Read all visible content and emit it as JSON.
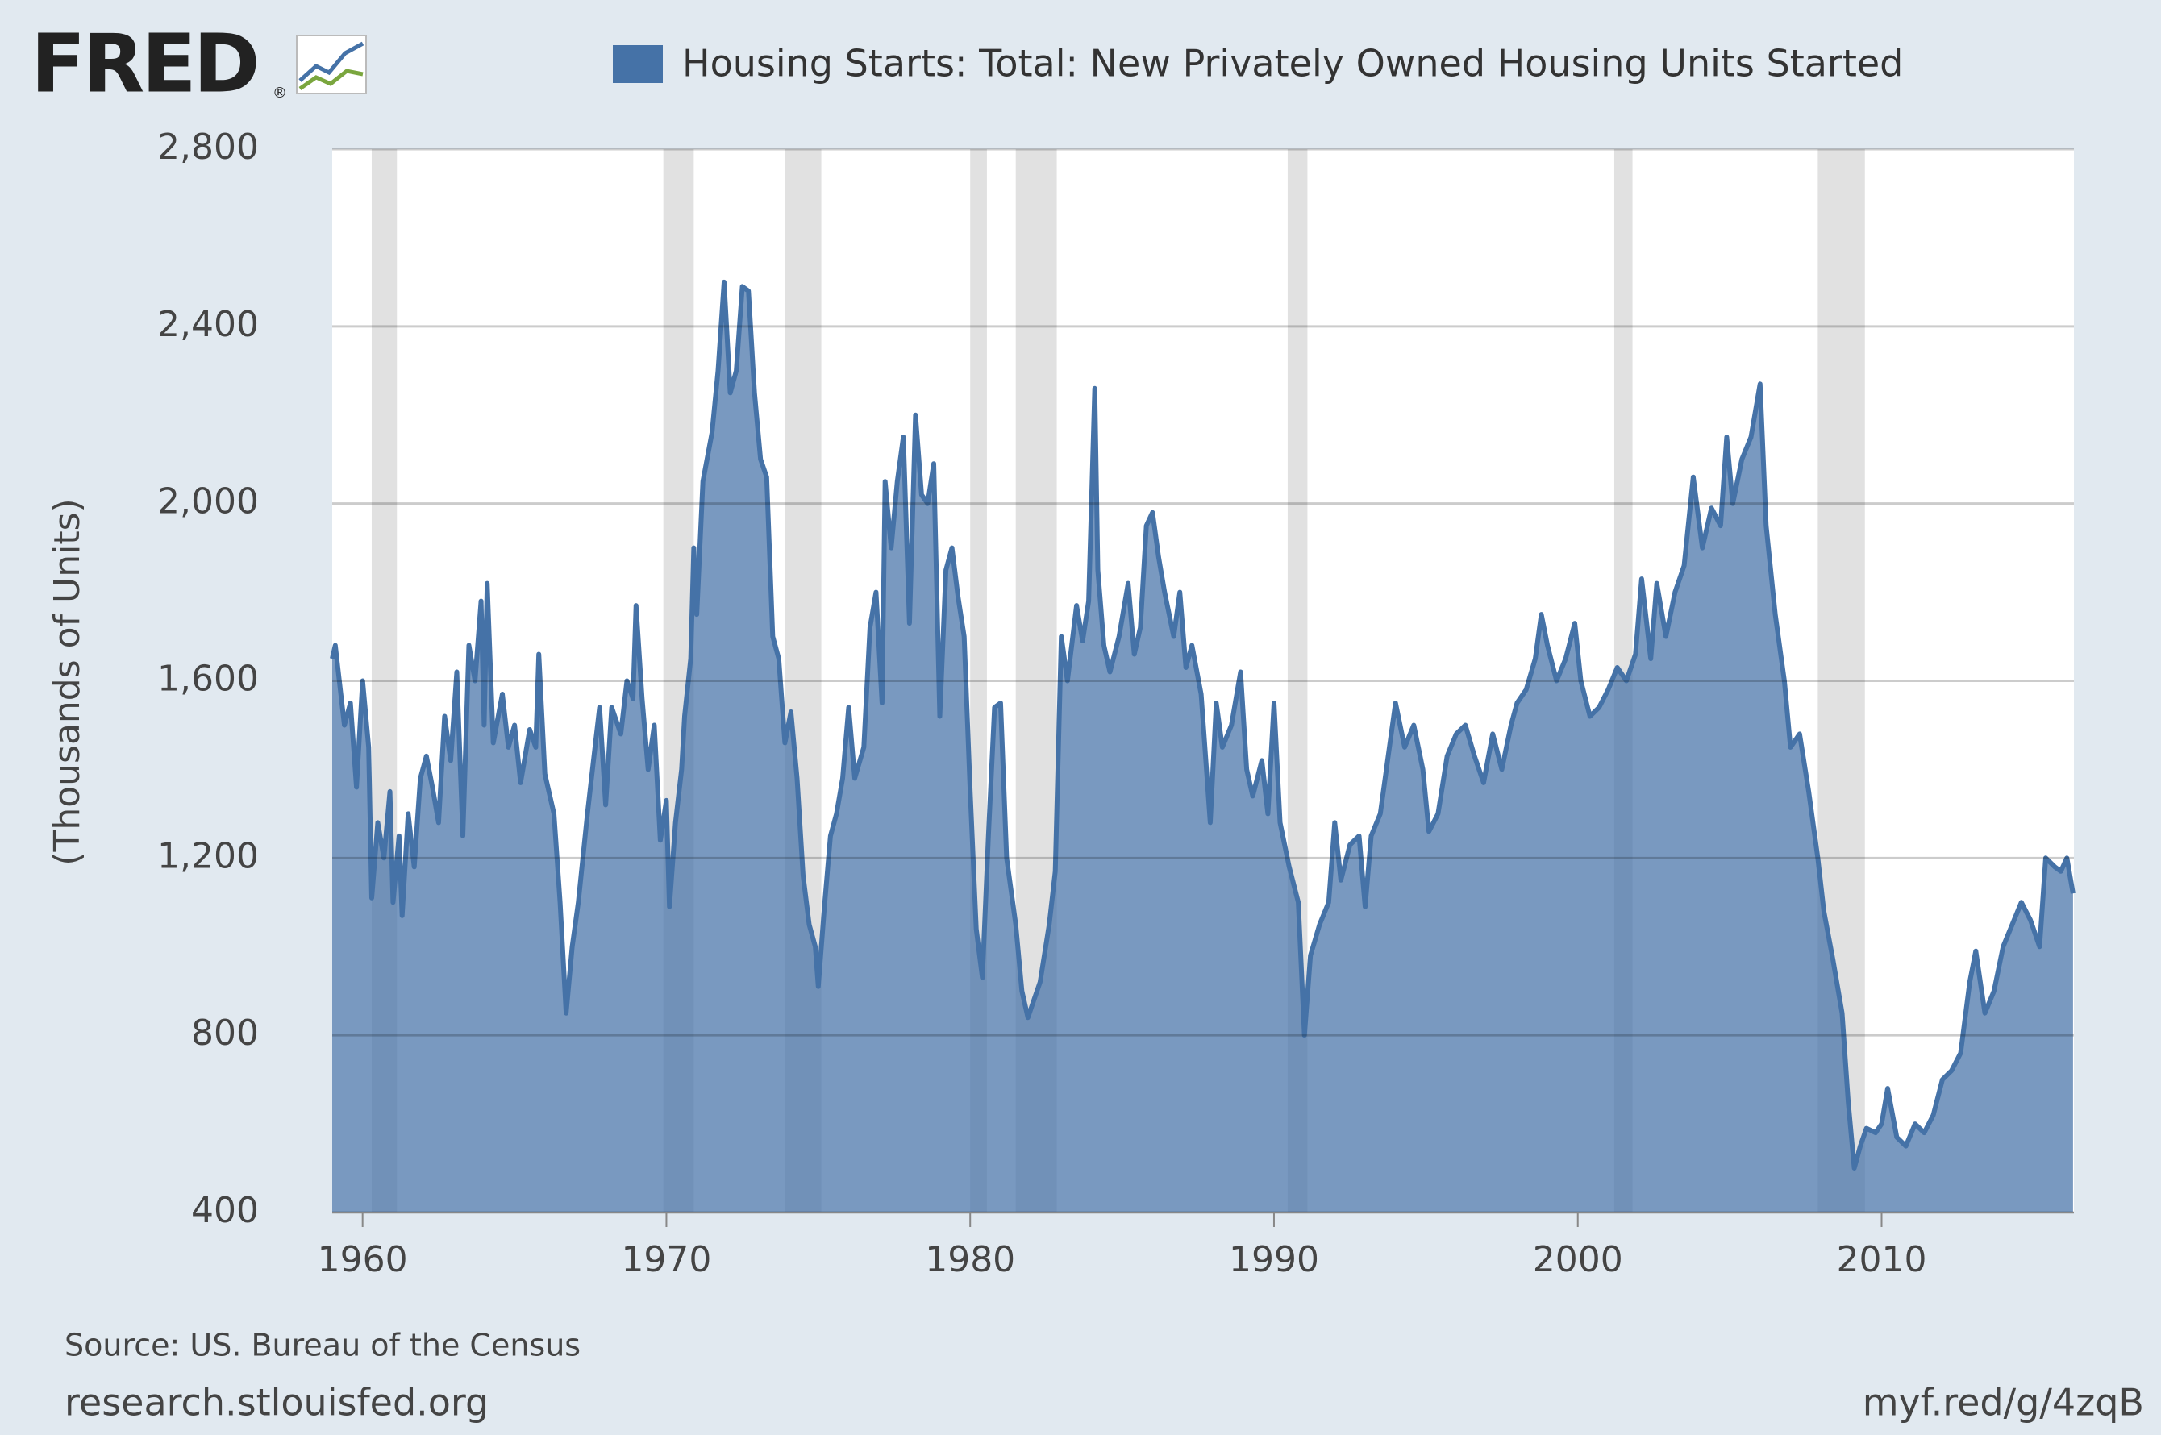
{
  "logo": "FRED",
  "logo_mark": "®",
  "chart_data": {
    "type": "area",
    "series": [
      {
        "name": "Housing Starts: Total: New Privately Owned Housing Units Started",
        "color": "#4572a7",
        "x": [
          1959.0,
          1959.1,
          1959.4,
          1959.6,
          1959.8,
          1960.0,
          1960.2,
          1960.3,
          1960.5,
          1960.7,
          1960.9,
          1961.0,
          1961.2,
          1961.3,
          1961.5,
          1961.7,
          1961.9,
          1962.1,
          1962.3,
          1962.5,
          1962.7,
          1962.9,
          1963.1,
          1963.3,
          1963.5,
          1963.7,
          1963.9,
          1964.0,
          1964.1,
          1964.3,
          1964.6,
          1964.8,
          1965.0,
          1965.2,
          1965.5,
          1965.7,
          1965.8,
          1966.0,
          1966.3,
          1966.5,
          1966.7,
          1966.9,
          1967.1,
          1967.4,
          1967.6,
          1967.8,
          1968.0,
          1968.2,
          1968.5,
          1968.7,
          1968.9,
          1969.0,
          1969.2,
          1969.4,
          1969.6,
          1969.8,
          1970.0,
          1970.1,
          1970.3,
          1970.5,
          1970.6,
          1970.8,
          1970.9,
          1971.0,
          1971.2,
          1971.5,
          1971.7,
          1971.9,
          1972.1,
          1972.3,
          1972.5,
          1972.7,
          1972.9,
          1973.1,
          1973.3,
          1973.5,
          1973.7,
          1973.9,
          1974.1,
          1974.3,
          1974.5,
          1974.7,
          1974.9,
          1975.0,
          1975.2,
          1975.4,
          1975.6,
          1975.8,
          1976.0,
          1976.2,
          1976.5,
          1976.7,
          1976.9,
          1977.1,
          1977.2,
          1977.4,
          1977.6,
          1977.8,
          1978.0,
          1978.2,
          1978.4,
          1978.6,
          1978.8,
          1979.0,
          1979.2,
          1979.4,
          1979.6,
          1979.8,
          1980.0,
          1980.2,
          1980.4,
          1980.6,
          1980.8,
          1981.0,
          1981.2,
          1981.5,
          1981.7,
          1981.9,
          1982.1,
          1982.3,
          1982.6,
          1982.8,
          1983.0,
          1983.2,
          1983.5,
          1983.7,
          1983.9,
          1984.1,
          1984.2,
          1984.4,
          1984.6,
          1984.9,
          1985.2,
          1985.4,
          1985.6,
          1985.8,
          1986.0,
          1986.2,
          1986.4,
          1986.7,
          1986.9,
          1987.1,
          1987.3,
          1987.6,
          1987.9,
          1988.1,
          1988.3,
          1988.6,
          1988.9,
          1989.1,
          1989.3,
          1989.6,
          1989.8,
          1990.0,
          1990.2,
          1990.5,
          1990.8,
          1991.0,
          1991.2,
          1991.5,
          1991.8,
          1992.0,
          1992.2,
          1992.5,
          1992.8,
          1993.0,
          1993.2,
          1993.5,
          1993.8,
          1994.0,
          1994.3,
          1994.6,
          1994.9,
          1995.1,
          1995.4,
          1995.7,
          1996.0,
          1996.3,
          1996.6,
          1996.9,
          1997.2,
          1997.5,
          1997.8,
          1998.0,
          1998.3,
          1998.6,
          1998.8,
          1999.0,
          1999.3,
          1999.6,
          1999.9,
          2000.1,
          2000.4,
          2000.7,
          2001.0,
          2001.3,
          2001.6,
          2001.9,
          2002.1,
          2002.4,
          2002.6,
          2002.9,
          2003.2,
          2003.5,
          2003.8,
          2004.1,
          2004.4,
          2004.7,
          2004.9,
          2005.1,
          2005.4,
          2005.7,
          2006.0,
          2006.2,
          2006.5,
          2006.8,
          2007.0,
          2007.3,
          2007.6,
          2007.9,
          2008.1,
          2008.4,
          2008.7,
          2008.9,
          2009.1,
          2009.3,
          2009.5,
          2009.8,
          2010.0,
          2010.2,
          2010.5,
          2010.8,
          2011.1,
          2011.4,
          2011.7,
          2012.0,
          2012.3,
          2012.6,
          2012.9,
          2013.1,
          2013.4,
          2013.7,
          2014.0,
          2014.3,
          2014.6,
          2014.9,
          2015.2,
          2015.4,
          2015.7,
          2015.9,
          2016.1,
          2016.3
        ],
        "values": [
          1650,
          1680,
          1500,
          1550,
          1360,
          1600,
          1450,
          1110,
          1280,
          1200,
          1350,
          1100,
          1250,
          1070,
          1300,
          1180,
          1380,
          1430,
          1360,
          1280,
          1520,
          1420,
          1620,
          1250,
          1680,
          1600,
          1780,
          1500,
          1820,
          1460,
          1570,
          1450,
          1500,
          1370,
          1490,
          1450,
          1660,
          1390,
          1300,
          1100,
          850,
          1000,
          1100,
          1300,
          1420,
          1540,
          1320,
          1540,
          1480,
          1600,
          1560,
          1770,
          1560,
          1400,
          1500,
          1240,
          1330,
          1090,
          1280,
          1400,
          1520,
          1650,
          1900,
          1750,
          2050,
          2160,
          2300,
          2500,
          2250,
          2300,
          2490,
          2480,
          2250,
          2100,
          2060,
          1700,
          1650,
          1460,
          1530,
          1380,
          1160,
          1050,
          1000,
          910,
          1090,
          1250,
          1300,
          1380,
          1540,
          1380,
          1450,
          1720,
          1800,
          1550,
          2050,
          1900,
          2050,
          2150,
          1730,
          2200,
          2020,
          2000,
          2090,
          1520,
          1850,
          1900,
          1790,
          1700,
          1350,
          1040,
          930,
          1250,
          1540,
          1550,
          1200,
          1050,
          900,
          840,
          880,
          920,
          1050,
          1170,
          1700,
          1600,
          1770,
          1690,
          1780,
          2260,
          1850,
          1680,
          1620,
          1700,
          1820,
          1660,
          1720,
          1950,
          1980,
          1880,
          1800,
          1700,
          1800,
          1630,
          1680,
          1570,
          1280,
          1550,
          1450,
          1500,
          1620,
          1400,
          1340,
          1420,
          1300,
          1550,
          1280,
          1180,
          1100,
          800,
          980,
          1050,
          1100,
          1280,
          1150,
          1230,
          1250,
          1090,
          1250,
          1300,
          1450,
          1550,
          1450,
          1500,
          1400,
          1260,
          1300,
          1430,
          1480,
          1500,
          1430,
          1370,
          1480,
          1400,
          1500,
          1550,
          1580,
          1650,
          1750,
          1680,
          1600,
          1650,
          1730,
          1600,
          1520,
          1540,
          1580,
          1630,
          1600,
          1660,
          1830,
          1650,
          1820,
          1700,
          1800,
          1860,
          2060,
          1900,
          1990,
          1950,
          2150,
          2000,
          2100,
          2150,
          2270,
          1950,
          1750,
          1600,
          1450,
          1480,
          1350,
          1200,
          1080,
          970,
          850,
          650,
          500,
          550,
          590,
          580,
          600,
          680,
          570,
          550,
          600,
          580,
          620,
          700,
          720,
          760,
          920,
          990,
          850,
          900,
          1000,
          1050,
          1100,
          1060,
          1000,
          1200,
          1180,
          1170,
          1200,
          1120
        ]
      }
    ],
    "recessions": [
      [
        1960.3,
        1961.13
      ],
      [
        1969.9,
        1970.9
      ],
      [
        1973.9,
        1975.1
      ],
      [
        1980.0,
        1980.55
      ],
      [
        1981.5,
        1982.85
      ],
      [
        1990.45,
        1991.1
      ],
      [
        2001.2,
        2001.8
      ],
      [
        2007.9,
        2009.45
      ]
    ],
    "xlim": [
      1959.0,
      2016.33
    ],
    "xticks": [
      1960,
      1970,
      1980,
      1990,
      2000,
      2010
    ],
    "ylim": [
      400,
      2800
    ],
    "yticks": [
      400,
      800,
      {
        "value": 1200,
        "label": "1,200"
      },
      {
        "value": 1600,
        "label": "1,600"
      },
      {
        "value": 2000,
        "label": "2,000"
      },
      {
        "value": 2400,
        "label": "2,400"
      },
      {
        "value": 2800,
        "label": "2,800"
      }
    ],
    "ylabel": "(Thousands of Units)",
    "grid": true,
    "source": "Source: US. Bureau of the Census",
    "footer_left": "research.stlouisfed.org",
    "footer_right": "myf.red/g/4zqB"
  }
}
